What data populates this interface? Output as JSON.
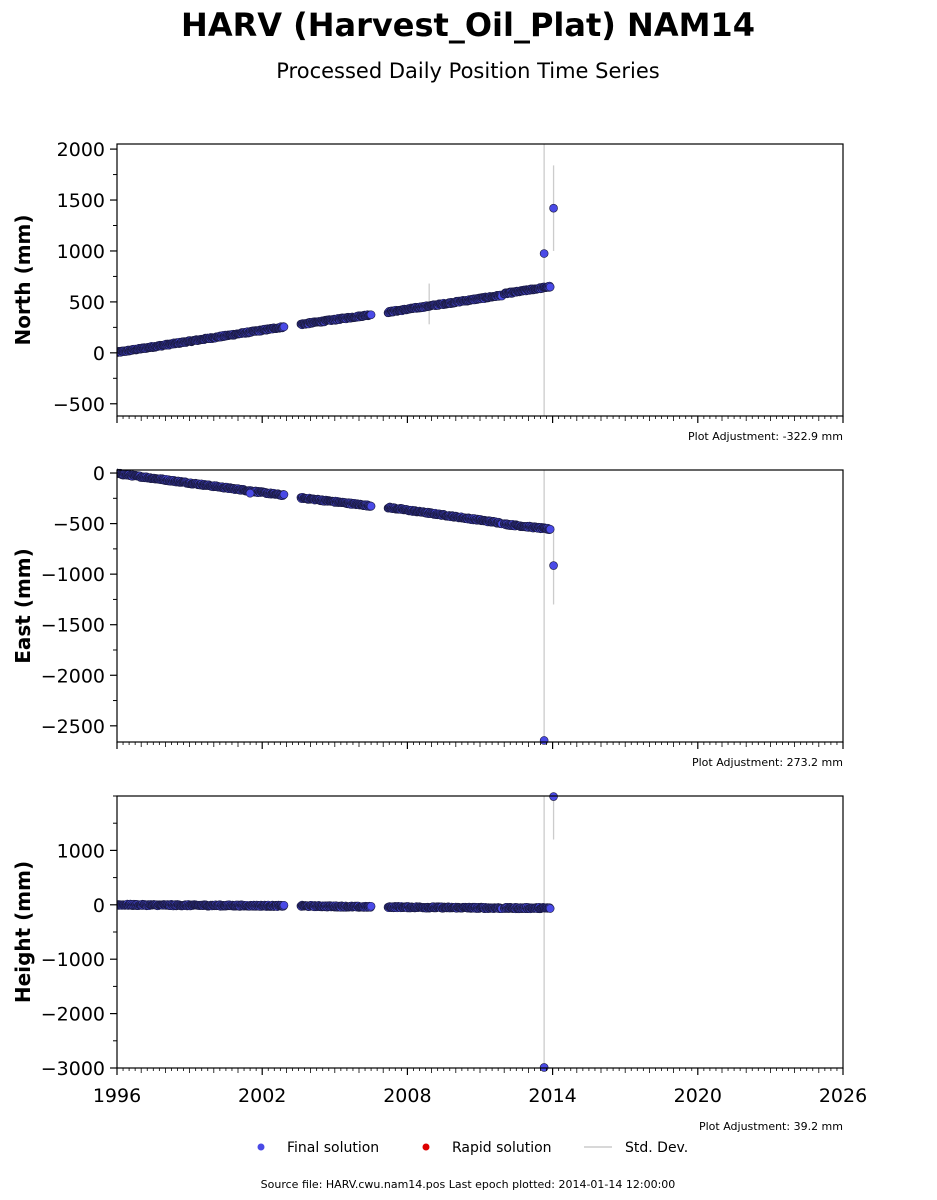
{
  "chart_data": {
    "type": "scatter",
    "title": "HARV (Harvest_Oil_Plat) NAM14",
    "subtitle": "Processed Daily Position Time Series",
    "xlim": [
      1996,
      2026
    ],
    "xticks": [
      1996,
      2002,
      2008,
      2014,
      2020,
      2026
    ],
    "xtick_labels": [
      "1996",
      "2002",
      "2008",
      "2014",
      "2020",
      "2026"
    ],
    "legend": {
      "placement": "bottom",
      "entries": [
        {
          "label": "Final solution",
          "color": "#4a4ae6",
          "kind": "marker"
        },
        {
          "label": "Rapid solution",
          "color": "#dd0000",
          "kind": "marker"
        },
        {
          "label": "Std. Dev.",
          "color": "#cccccc",
          "kind": "line"
        }
      ]
    },
    "source_note": "Source file: HARV.cwu.nam14.pos  Last epoch plotted: 2014-01-14 12:00:00",
    "colors": {
      "final": "#4a4ae6",
      "rapid": "#dd0000",
      "stddev": "#cccccc",
      "edge": "#1a1a40"
    },
    "panels": [
      {
        "ylabel": "North (mm)",
        "ylim": [
          -620,
          2050
        ],
        "yticks": [
          -500,
          0,
          500,
          1000,
          1500,
          2000
        ],
        "ytick_labels": [
          "−500",
          "0",
          "500",
          "1000",
          "1500",
          "2000"
        ],
        "adjustment": "Plot Adjustment: -322.9 mm",
        "segments": [
          {
            "x": [
              1996.0,
              2002.9
            ],
            "y": [
              5,
              255
            ]
          },
          {
            "x": [
              2003.6,
              2006.5
            ],
            "y": [
              280,
              375
            ]
          },
          {
            "x": [
              2007.2,
              2011.9
            ],
            "y": [
              400,
              565
            ]
          },
          {
            "x": [
              2012.0,
              2013.9
            ],
            "y": [
              580,
              650
            ]
          }
        ],
        "outliers": [
          {
            "x": 2013.65,
            "y": 975
          },
          {
            "x": 2014.04,
            "y": 1420
          }
        ],
        "stddev_bars": [
          {
            "x": 2008.9,
            "y": [
              280,
              680
            ]
          },
          {
            "x": 2013.65,
            "y": [
              -620,
              2050
            ]
          },
          {
            "x": 2014.04,
            "y": [
              1000,
              1840
            ]
          }
        ]
      },
      {
        "ylabel": "East (mm)",
        "ylim": [
          -2660,
          30
        ],
        "yticks": [
          -2500,
          -2000,
          -1500,
          -1000,
          -500,
          0
        ],
        "ytick_labels": [
          "−2500",
          "−2000",
          "−1500",
          "−1000",
          "−500",
          "0"
        ],
        "adjustment": "Plot Adjustment: 273.2 mm",
        "segments": [
          {
            "x": [
              1996.0,
              2002.9
            ],
            "y": [
              -5,
              -220
            ]
          },
          {
            "x": [
              2003.6,
              2006.5
            ],
            "y": [
              -245,
              -325
            ]
          },
          {
            "x": [
              2007.2,
              2011.9
            ],
            "y": [
              -340,
              -495
            ]
          },
          {
            "x": [
              2012.0,
              2013.9
            ],
            "y": [
              -505,
              -555
            ]
          }
        ],
        "outliers": [
          {
            "x": 2014.04,
            "y": -915
          },
          {
            "x": 2013.65,
            "y": -2645
          },
          {
            "x": 2001.5,
            "y": -200
          }
        ],
        "stddev_bars": [
          {
            "x": 2013.65,
            "y": [
              -2660,
              30
            ]
          },
          {
            "x": 2014.04,
            "y": [
              -1300,
              -530
            ]
          }
        ]
      },
      {
        "ylabel": "Height (mm)",
        "ylim": [
          -3000,
          2000
        ],
        "yticks": [
          -3000,
          -2000,
          -1000,
          0,
          1000
        ],
        "ytick_labels": [
          "−3000",
          "−2000",
          "−1000",
          "0",
          "1000"
        ],
        "adjustment": "Plot Adjustment: 39.2 mm",
        "segments": [
          {
            "x": [
              1996.0,
              2002.9
            ],
            "y": [
              0,
              -20
            ]
          },
          {
            "x": [
              2003.6,
              2006.5
            ],
            "y": [
              -20,
              -40
            ]
          },
          {
            "x": [
              2007.2,
              2011.9
            ],
            "y": [
              -40,
              -60
            ]
          },
          {
            "x": [
              2012.0,
              2013.9
            ],
            "y": [
              -60,
              -60
            ]
          }
        ],
        "outliers": [
          {
            "x": 2014.04,
            "y": 1990
          },
          {
            "x": 2013.65,
            "y": -2990
          }
        ],
        "stddev_bars": [
          {
            "x": 2013.65,
            "y": [
              -3000,
              2000
            ]
          },
          {
            "x": 2014.04,
            "y": [
              1200,
              2000
            ]
          }
        ]
      }
    ]
  }
}
